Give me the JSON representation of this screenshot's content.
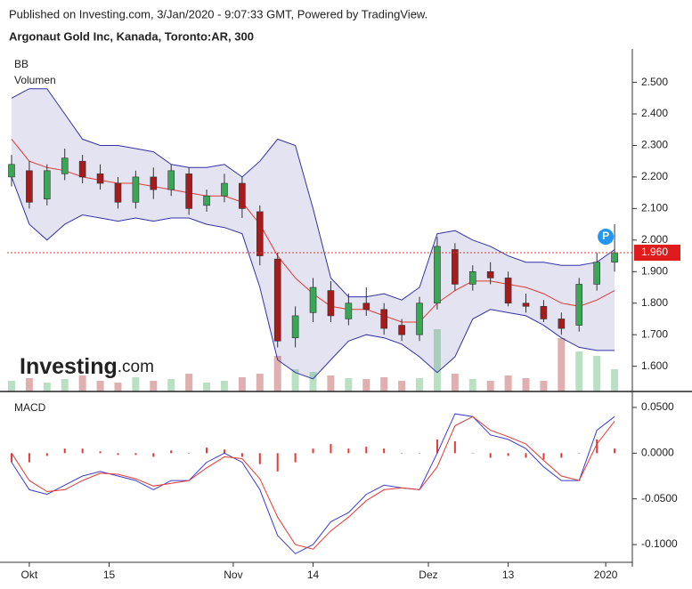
{
  "header": {
    "published": "Published on Investing.com, 3/Jan/2020 - 9:07:33 GMT, Powered by TradingView.",
    "symbol": "Argonaut Gold Inc, Kanada, Toronto:AR, 300",
    "logo": "Investing",
    "logo_suffix": ".com"
  },
  "chart_data": [
    {
      "type": "candlestick",
      "labels": [
        "BB",
        "Volumen"
      ],
      "x": [
        -2,
        0,
        2,
        4,
        6,
        8,
        10,
        12,
        14,
        16,
        18,
        20,
        22,
        24,
        26,
        28,
        30,
        32,
        34,
        36,
        38,
        40,
        42,
        44,
        46,
        48,
        50,
        52,
        54,
        56,
        58,
        60,
        62,
        64,
        66
      ],
      "open": [
        2.2,
        2.22,
        2.13,
        2.21,
        2.25,
        2.21,
        2.18,
        2.12,
        2.2,
        2.16,
        2.21,
        2.11,
        2.14,
        2.18,
        2.09,
        1.94,
        1.69,
        1.77,
        1.84,
        1.75,
        1.8,
        1.78,
        1.73,
        1.7,
        1.8,
        1.97,
        1.86,
        1.9,
        1.88,
        1.8,
        1.79,
        1.75,
        1.73,
        1.86,
        1.93
      ],
      "high": [
        2.27,
        2.25,
        2.24,
        2.29,
        2.27,
        2.24,
        2.2,
        2.22,
        2.23,
        2.24,
        2.23,
        2.16,
        2.21,
        2.2,
        2.11,
        1.96,
        1.79,
        1.88,
        1.87,
        1.83,
        1.85,
        1.8,
        1.75,
        1.82,
        2.01,
        1.99,
        1.92,
        1.93,
        1.9,
        1.83,
        1.81,
        1.77,
        1.88,
        1.96,
        2.05
      ],
      "low": [
        2.17,
        2.1,
        2.11,
        2.19,
        2.18,
        2.16,
        2.1,
        2.1,
        2.13,
        2.14,
        2.08,
        2.09,
        2.12,
        2.07,
        1.92,
        1.66,
        1.66,
        1.74,
        1.74,
        1.73,
        1.76,
        1.7,
        1.68,
        1.68,
        1.78,
        1.84,
        1.84,
        1.86,
        1.79,
        1.77,
        1.74,
        1.7,
        1.71,
        1.84,
        1.9
      ],
      "close": [
        2.24,
        2.12,
        2.22,
        2.26,
        2.2,
        2.18,
        2.12,
        2.2,
        2.16,
        2.22,
        2.1,
        2.14,
        2.18,
        2.1,
        1.95,
        1.68,
        1.76,
        1.85,
        1.76,
        1.8,
        1.78,
        1.72,
        1.7,
        1.8,
        1.98,
        1.86,
        1.9,
        1.88,
        1.8,
        1.79,
        1.75,
        1.72,
        1.86,
        1.93,
        1.96
      ],
      "up_color": "#3aa757",
      "down_color": "#a61b1b",
      "bb_upper": [
        2.45,
        2.48,
        2.48,
        2.4,
        2.32,
        2.3,
        2.3,
        2.29,
        2.28,
        2.24,
        2.23,
        2.23,
        2.24,
        2.2,
        2.25,
        2.32,
        2.3,
        2.1,
        1.88,
        1.82,
        1.82,
        1.83,
        1.81,
        1.85,
        2.02,
        2.03,
        2.0,
        1.98,
        1.95,
        1.93,
        1.93,
        1.92,
        1.92,
        1.93,
        1.97
      ],
      "bb_middle": [
        2.32,
        2.25,
        2.23,
        2.22,
        2.2,
        2.19,
        2.18,
        2.18,
        2.17,
        2.16,
        2.15,
        2.14,
        2.14,
        2.12,
        2.05,
        1.95,
        1.88,
        1.83,
        1.79,
        1.78,
        1.78,
        1.76,
        1.74,
        1.74,
        1.8,
        1.84,
        1.87,
        1.87,
        1.86,
        1.85,
        1.83,
        1.8,
        1.79,
        1.81,
        1.84
      ],
      "bb_lower": [
        2.2,
        2.05,
        2.0,
        2.05,
        2.08,
        2.07,
        2.06,
        2.07,
        2.06,
        2.07,
        2.07,
        2.05,
        2.04,
        2.02,
        1.85,
        1.62,
        1.58,
        1.56,
        1.62,
        1.68,
        1.7,
        1.69,
        1.67,
        1.63,
        1.58,
        1.63,
        1.75,
        1.78,
        1.77,
        1.76,
        1.73,
        1.69,
        1.66,
        1.65,
        1.65
      ],
      "bb_band_color": "#3232a8",
      "bb_middle_color": "#e53935",
      "bb_fill": "#c8c8e6",
      "volume": [
        12,
        15,
        10,
        14,
        18,
        12,
        10,
        16,
        12,
        14,
        20,
        10,
        12,
        16,
        20,
        40,
        25,
        22,
        18,
        15,
        14,
        16,
        12,
        15,
        70,
        20,
        14,
        12,
        18,
        15,
        12,
        60,
        45,
        40,
        25
      ],
      "volume_ylim": [
        0,
        100
      ],
      "last_price": {
        "value": 1.96,
        "label": "1.960"
      },
      "marker_label": "P",
      "xlim": [
        -2.5,
        68
      ],
      "xticks": [
        {
          "value": 0,
          "label": "Okt"
        },
        {
          "value": 9,
          "label": "15"
        },
        {
          "value": 23,
          "label": "Nov"
        },
        {
          "value": 32,
          "label": "14"
        },
        {
          "value": 45,
          "label": "Dez"
        },
        {
          "value": 54,
          "label": "13"
        },
        {
          "value": 65,
          "label": "2020"
        }
      ],
      "ylim": [
        1.52,
        2.606
      ],
      "yticks": [
        {
          "value": 2.5,
          "label": "2.500"
        },
        {
          "value": 2.4,
          "label": "2.400"
        },
        {
          "value": 2.3,
          "label": "2.300"
        },
        {
          "value": 2.2,
          "label": "2.200"
        },
        {
          "value": 2.1,
          "label": "2.100"
        },
        {
          "value": 2.0,
          "label": "2.000"
        },
        {
          "value": 1.9,
          "label": "1.900"
        },
        {
          "value": 1.8,
          "label": "1.800"
        },
        {
          "value": 1.7,
          "label": "1.700"
        },
        {
          "value": 1.6,
          "label": "1.600"
        }
      ]
    },
    {
      "type": "macd",
      "title": "MACD",
      "x": [
        -2,
        0,
        2,
        4,
        6,
        8,
        10,
        12,
        14,
        16,
        18,
        20,
        22,
        24,
        26,
        28,
        30,
        32,
        34,
        36,
        38,
        40,
        42,
        44,
        46,
        48,
        50,
        52,
        54,
        56,
        58,
        60,
        62,
        64,
        66
      ],
      "macd": [
        -0.01,
        -0.04,
        -0.045,
        -0.035,
        -0.025,
        -0.02,
        -0.025,
        -0.03,
        -0.04,
        -0.03,
        -0.03,
        -0.01,
        0.0,
        -0.01,
        -0.04,
        -0.09,
        -0.11,
        -0.1,
        -0.075,
        -0.065,
        -0.045,
        -0.035,
        -0.038,
        -0.04,
        0.0,
        0.043,
        0.04,
        0.02,
        0.015,
        0.005,
        -0.015,
        -0.03,
        -0.03,
        0.025,
        0.04
      ],
      "signal": [
        0.0,
        -0.03,
        -0.042,
        -0.04,
        -0.03,
        -0.022,
        -0.023,
        -0.028,
        -0.036,
        -0.033,
        -0.03,
        -0.016,
        -0.004,
        -0.006,
        -0.028,
        -0.07,
        -0.1,
        -0.105,
        -0.085,
        -0.07,
        -0.052,
        -0.04,
        -0.038,
        -0.04,
        -0.015,
        0.03,
        0.04,
        0.025,
        0.018,
        0.01,
        -0.008,
        -0.025,
        -0.03,
        0.01,
        0.035
      ],
      "histogram": [
        -0.01,
        -0.01,
        -0.003,
        0.005,
        0.005,
        0.002,
        -0.002,
        -0.002,
        -0.004,
        0.003,
        0.0,
        0.006,
        0.004,
        -0.004,
        -0.012,
        -0.02,
        -0.01,
        0.005,
        0.01,
        0.005,
        0.007,
        0.005,
        0.0,
        0.0,
        0.015,
        0.013,
        0.0,
        -0.005,
        -0.003,
        -0.005,
        -0.007,
        -0.005,
        0.0,
        0.015,
        0.005
      ],
      "macd_color": "#3b3bd6",
      "signal_color": "#e53935",
      "histogram_color": "#e53935",
      "xlim": [
        -2.5,
        68
      ],
      "ylim": [
        -0.1194,
        0.0626
      ],
      "yticks": [
        {
          "value": 0.05,
          "label": "0.0500"
        },
        {
          "value": 0,
          "label": "0.0000"
        },
        {
          "value": -0.05,
          "label": "-0.0500"
        },
        {
          "value": -0.1,
          "label": "-0.1000"
        }
      ]
    }
  ]
}
